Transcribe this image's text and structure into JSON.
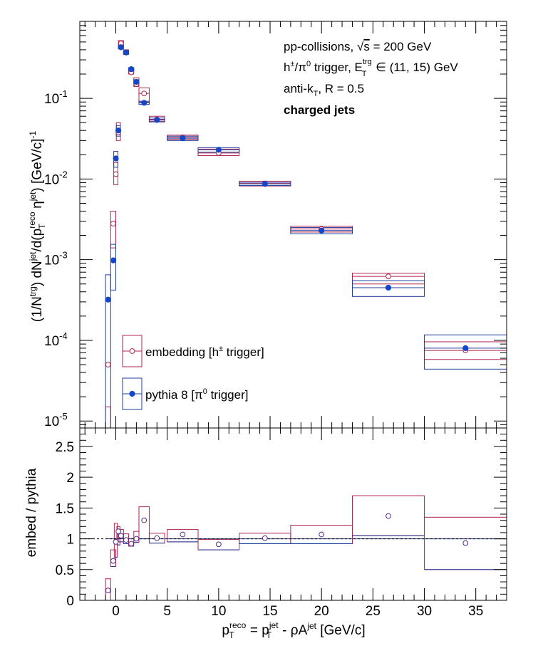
{
  "chart_data": [
    {
      "type": "scatter",
      "panel": "top",
      "x_scale": "linear",
      "y_scale": "log",
      "xlim": [
        -3.5,
        38
      ],
      "ylim": [
        8.2e-06,
        0.9
      ],
      "y_ticks": [
        {
          "v": 1e-05,
          "base": "10",
          "exp": "-5"
        },
        {
          "v": 0.0001,
          "base": "10",
          "exp": "-4"
        },
        {
          "v": 0.001,
          "base": "10",
          "exp": "-3"
        },
        {
          "v": 0.01,
          "base": "10",
          "exp": "-2"
        },
        {
          "v": 0.1,
          "base": "10",
          "exp": "-1"
        }
      ],
      "ylabel": "(1/N^trg) dN^jet/d(p_T^reco η^jet) [GeV/c]^-1",
      "annotations": [
        "pp-collisions, √s = 200 GeV",
        "h±/π0 trigger, E_T^trg ∈ (11, 15) GeV",
        "anti-k_T, R = 0.5",
        "charged jets"
      ],
      "legend_placement": "bottom-left",
      "series": [
        {
          "name": "embedding [h± trigger]",
          "color": "#b0244f",
          "marker": "open-circle",
          "points": [
            {
              "x": -0.75,
              "y": 5e-05,
              "xw": 0.25,
              "lo": 3e-06,
              "hi": 1.5e-05
            },
            {
              "x": -0.25,
              "y": 0.0028,
              "xw": 0.25,
              "lo": 0.0014,
              "hi": 0.004
            },
            {
              "x": 0.0,
              "y": 0.0115,
              "xw": 0.2,
              "lo": 0.0085,
              "hi": 0.016
            },
            {
              "x": 0.25,
              "y": 0.038,
              "xw": 0.2,
              "lo": 0.03,
              "hi": 0.05
            },
            {
              "x": 0.5,
              "y": 0.48,
              "xw": 0.25,
              "lo": 0.44,
              "hi": 0.52
            },
            {
              "x": 1.0,
              "y": 0.37,
              "xw": 0.25,
              "lo": 0.35,
              "hi": 0.4
            },
            {
              "x": 1.5,
              "y": 0.21,
              "xw": 0.25,
              "lo": 0.2,
              "hi": 0.23
            },
            {
              "x": 2.0,
              "y": 0.15,
              "xw": 0.25,
              "lo": 0.14,
              "hi": 0.18
            },
            {
              "x": 2.75,
              "y": 0.115,
              "xw": 0.5,
              "lo": 0.09,
              "hi": 0.135
            },
            {
              "x": 4.0,
              "y": 0.055,
              "xw": 0.75,
              "lo": 0.052,
              "hi": 0.06
            },
            {
              "x": 6.5,
              "y": 0.033,
              "xw": 1.5,
              "lo": 0.031,
              "hi": 0.035
            },
            {
              "x": 10.0,
              "y": 0.021,
              "xw": 2.0,
              "lo": 0.0195,
              "hi": 0.0235
            },
            {
              "x": 14.5,
              "y": 0.0088,
              "xw": 2.5,
              "lo": 0.0082,
              "hi": 0.0094
            },
            {
              "x": 20.0,
              "y": 0.0024,
              "xw": 3.0,
              "lo": 0.0022,
              "hi": 0.0026
            },
            {
              "x": 26.5,
              "y": 0.00062,
              "xw": 3.5,
              "lo": 0.0005,
              "hi": 0.00068
            },
            {
              "x": 34.0,
              "y": 7.5e-05,
              "xw": 4.0,
              "lo": 5.8e-05,
              "hi": 9.6e-05
            }
          ]
        },
        {
          "name": "pythia 8 [π0 trigger]",
          "color": "#1f3c9c",
          "marker": "filled-circle",
          "points": [
            {
              "x": -0.75,
              "y": 0.00032,
              "xw": 0.25,
              "lo": 1e-06,
              "hi": 0.00065
            },
            {
              "x": -0.25,
              "y": 0.00098,
              "xw": 0.25,
              "lo": 0.00042,
              "hi": 0.00155
            },
            {
              "x": 0.0,
              "y": 0.018,
              "xw": 0.2,
              "lo": 0.014,
              "hi": 0.022
            },
            {
              "x": 0.25,
              "y": 0.04,
              "xw": 0.2,
              "lo": 0.034,
              "hi": 0.046
            },
            {
              "x": 0.5,
              "y": 0.43,
              "xw": 0.25,
              "lo": 0.41,
              "hi": 0.45
            },
            {
              "x": 1.0,
              "y": 0.37,
              "xw": 0.25,
              "lo": 0.355,
              "hi": 0.385
            },
            {
              "x": 1.5,
              "y": 0.23,
              "xw": 0.25,
              "lo": 0.22,
              "hi": 0.24
            },
            {
              "x": 2.0,
              "y": 0.16,
              "xw": 0.25,
              "lo": 0.15,
              "hi": 0.17
            },
            {
              "x": 2.75,
              "y": 0.088,
              "xw": 0.5,
              "lo": 0.084,
              "hi": 0.092
            },
            {
              "x": 4.0,
              "y": 0.054,
              "xw": 0.75,
              "lo": 0.051,
              "hi": 0.057
            },
            {
              "x": 6.5,
              "y": 0.032,
              "xw": 1.5,
              "lo": 0.03,
              "hi": 0.034
            },
            {
              "x": 10.0,
              "y": 0.023,
              "xw": 2.0,
              "lo": 0.0215,
              "hi": 0.0245
            },
            {
              "x": 14.5,
              "y": 0.0087,
              "xw": 2.5,
              "lo": 0.0083,
              "hi": 0.0091
            },
            {
              "x": 20.0,
              "y": 0.0023,
              "xw": 3.0,
              "lo": 0.0021,
              "hi": 0.0025
            },
            {
              "x": 26.5,
              "y": 0.00045,
              "xw": 3.5,
              "lo": 0.00035,
              "hi": 0.00055
            },
            {
              "x": 34.0,
              "y": 8e-05,
              "xw": 4.0,
              "lo": 4.4e-05,
              "hi": 0.000117
            }
          ]
        }
      ]
    },
    {
      "type": "scatter",
      "panel": "bottom",
      "x_scale": "linear",
      "y_scale": "linear",
      "xlim": [
        -3.5,
        38
      ],
      "ylim": [
        0,
        2.8
      ],
      "y_ticks": [
        {
          "v": 0,
          "label": "0"
        },
        {
          "v": 0.5,
          "label": "0.5"
        },
        {
          "v": 1,
          "label": "1"
        },
        {
          "v": 1.5,
          "label": "1.5"
        },
        {
          "v": 2,
          "label": "2"
        },
        {
          "v": 2.5,
          "label": "2.5"
        }
      ],
      "x_ticks": [
        {
          "v": 0,
          "label": "0"
        },
        {
          "v": 5,
          "label": "5"
        },
        {
          "v": 10,
          "label": "10"
        },
        {
          "v": 15,
          "label": "15"
        },
        {
          "v": 20,
          "label": "20"
        },
        {
          "v": 25,
          "label": "25"
        },
        {
          "v": 30,
          "label": "30"
        },
        {
          "v": 35,
          "label": "35"
        }
      ],
      "ylabel": "embed / pythia",
      "xlabel": "p_T^reco = p_T^jet - ρA^jet [GeV/c]",
      "reference_line": 1,
      "ratio": [
        {
          "x": -0.75,
          "y": 0.16,
          "xw": 0.25,
          "lo": 0.0,
          "hi": 0.35
        },
        {
          "x": -0.25,
          "y": 0.64,
          "xw": 0.25,
          "lo": 0.55,
          "hi": 0.82
        },
        {
          "x": 0.0,
          "y": 0.95,
          "xw": 0.15,
          "lo": 0.7,
          "hi": 1.25
        },
        {
          "x": 0.25,
          "y": 1.12,
          "xw": 0.15,
          "lo": 0.9,
          "hi": 1.2
        },
        {
          "x": 0.5,
          "y": 1.05,
          "xw": 0.25,
          "lo": 0.95,
          "hi": 1.15
        },
        {
          "x": 1.0,
          "y": 0.98,
          "xw": 0.25,
          "lo": 0.92,
          "hi": 1.08
        },
        {
          "x": 1.5,
          "y": 0.92,
          "xw": 0.25,
          "lo": 0.88,
          "hi": 1.0
        },
        {
          "x": 2.0,
          "y": 1.0,
          "xw": 0.25,
          "lo": 0.94,
          "hi": 1.12
        },
        {
          "x": 2.75,
          "y": 1.3,
          "xw": 0.5,
          "lo": 1.0,
          "hi": 1.52
        },
        {
          "x": 4.0,
          "y": 1.01,
          "xw": 0.75,
          "lo": 0.93,
          "hi": 1.09
        },
        {
          "x": 6.5,
          "y": 1.07,
          "xw": 1.5,
          "lo": 0.95,
          "hi": 1.15
        },
        {
          "x": 10.0,
          "y": 0.91,
          "xw": 2.0,
          "lo": 0.82,
          "hi": 0.99
        },
        {
          "x": 14.5,
          "y": 1.01,
          "xw": 2.5,
          "lo": 0.92,
          "hi": 1.09
        },
        {
          "x": 20.0,
          "y": 1.07,
          "xw": 3.0,
          "lo": 0.92,
          "hi": 1.22
        },
        {
          "x": 26.5,
          "y": 1.37,
          "xw": 3.5,
          "lo": 1.05,
          "hi": 1.7
        },
        {
          "x": 34.0,
          "y": 0.93,
          "xw": 4.0,
          "lo": 0.5,
          "hi": 1.35
        }
      ]
    }
  ]
}
